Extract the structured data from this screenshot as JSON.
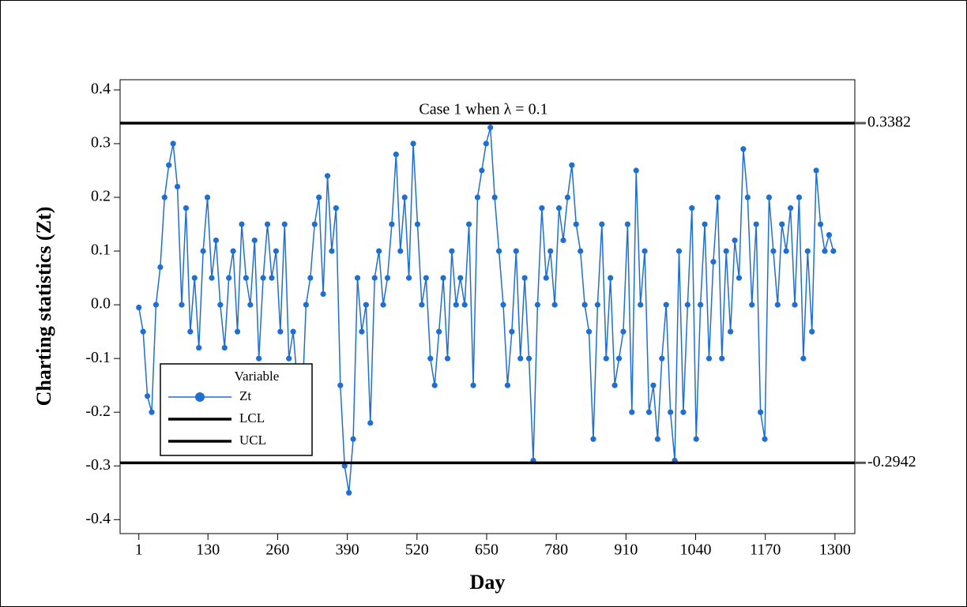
{
  "chart_data": {
    "type": "line",
    "annotation": "Case 1 when λ = 0.1",
    "xlabel": "Day",
    "ylabel": "Charting statistics (Zt)",
    "legend_title": "Variable",
    "legend": "lower left",
    "xlim": [
      -34,
      1337
    ],
    "ylim": [
      -0.426,
      0.419
    ],
    "xticks": [
      1,
      130,
      260,
      390,
      520,
      650,
      780,
      910,
      1040,
      1170,
      1300
    ],
    "yticks": [
      -0.4,
      -0.3,
      -0.2,
      -0.1,
      {
        "value": 0,
        "label": "0.0"
      },
      0.1,
      0.2,
      0.3,
      0.4
    ],
    "x": [
      1,
      9,
      17,
      25,
      33,
      41,
      49,
      57,
      65,
      73,
      81,
      89,
      97,
      105,
      113,
      121,
      129,
      137,
      145,
      153,
      161,
      169,
      177,
      185,
      193,
      201,
      209,
      217,
      225,
      233,
      241,
      249,
      257,
      265,
      273,
      281,
      289,
      297,
      305,
      313,
      321,
      329,
      337,
      345,
      353,
      361,
      369,
      377,
      385,
      393,
      401,
      409,
      417,
      425,
      433,
      441,
      449,
      457,
      465,
      473,
      481,
      489,
      497,
      505,
      513,
      521,
      529,
      537,
      545,
      553,
      561,
      569,
      577,
      585,
      593,
      601,
      609,
      617,
      625,
      633,
      641,
      649,
      657,
      665,
      673,
      681,
      689,
      697,
      705,
      713,
      721,
      729,
      737,
      745,
      753,
      761,
      769,
      777,
      785,
      793,
      801,
      809,
      817,
      825,
      833,
      841,
      849,
      857,
      865,
      873,
      881,
      889,
      897,
      905,
      913,
      921,
      929,
      937,
      945,
      953,
      961,
      969,
      977,
      985,
      993,
      1001,
      1009,
      1017,
      1025,
      1033,
      1041,
      1049,
      1057,
      1065,
      1073,
      1081,
      1089,
      1097,
      1105,
      1113,
      1121,
      1129,
      1137,
      1145,
      1153,
      1161,
      1169,
      1177,
      1185,
      1193,
      1201,
      1209,
      1217,
      1225,
      1233,
      1241,
      1249,
      1257,
      1265,
      1273,
      1281,
      1289,
      1297
    ],
    "series": [
      {
        "name": "Zt",
        "color": "#1f6fd0",
        "values": [
          -0.005,
          -0.05,
          -0.17,
          -0.2,
          0.0,
          0.07,
          0.2,
          0.26,
          0.3,
          0.22,
          0.0,
          0.18,
          -0.05,
          0.05,
          -0.08,
          0.1,
          0.2,
          0.05,
          0.12,
          0.0,
          -0.08,
          0.05,
          0.1,
          -0.05,
          0.15,
          0.05,
          0.0,
          0.12,
          -0.1,
          0.05,
          0.15,
          0.05,
          0.1,
          -0.05,
          0.15,
          -0.1,
          -0.05,
          -0.15,
          -0.2,
          0.0,
          0.05,
          0.15,
          0.2,
          0.02,
          0.24,
          0.1,
          0.18,
          -0.15,
          -0.3,
          -0.35,
          -0.25,
          0.05,
          -0.05,
          0.0,
          -0.22,
          0.05,
          0.1,
          0.0,
          0.05,
          0.15,
          0.28,
          0.1,
          0.2,
          0.05,
          0.3,
          0.15,
          0.0,
          0.05,
          -0.1,
          -0.15,
          -0.05,
          0.05,
          -0.1,
          0.1,
          0.0,
          0.05,
          0.0,
          0.15,
          -0.15,
          0.2,
          0.25,
          0.3,
          0.33,
          0.2,
          0.1,
          0.0,
          -0.15,
          -0.05,
          0.1,
          -0.1,
          0.05,
          -0.1,
          -0.29,
          0.0,
          0.18,
          0.05,
          0.1,
          0.0,
          0.18,
          0.12,
          0.2,
          0.26,
          0.15,
          0.1,
          0.0,
          -0.05,
          -0.25,
          0.0,
          0.15,
          -0.1,
          0.05,
          -0.15,
          -0.1,
          -0.05,
          0.15,
          -0.2,
          0.25,
          0.0,
          0.1,
          -0.2,
          -0.15,
          -0.25,
          -0.1,
          0.0,
          -0.2,
          -0.29,
          0.1,
          -0.2,
          0.0,
          0.18,
          -0.25,
          0.0,
          0.15,
          -0.1,
          0.08,
          0.2,
          -0.1,
          0.1,
          -0.05,
          0.12,
          0.05,
          0.29,
          0.2,
          0.0,
          0.15,
          -0.2,
          -0.25,
          0.2,
          0.1,
          0.0,
          0.15,
          0.1,
          0.18,
          0.0,
          0.2,
          -0.1,
          0.1,
          -0.05,
          0.25,
          0.15,
          0.1,
          0.13,
          0.1
        ]
      },
      {
        "name": "LCL",
        "color": "#000000",
        "value": -0.2942
      },
      {
        "name": "UCL",
        "color": "#000000",
        "value": 0.3382
      }
    ]
  }
}
